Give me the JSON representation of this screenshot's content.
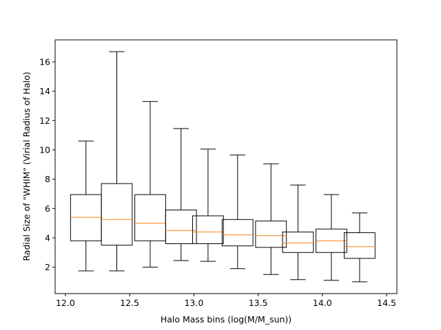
{
  "chart_data": {
    "type": "boxplot",
    "title": "",
    "xlabel": "Halo Mass bins (log(M/M_sun))",
    "ylabel": "Radial Size of \"WHIM\" (Virial Radius of Halo)",
    "xlim": [
      11.92,
      14.58
    ],
    "ylim": [
      0.2,
      17.5
    ],
    "xticks": [
      12.0,
      12.5,
      13.0,
      13.5,
      14.0,
      14.5
    ],
    "xtick_labels": [
      "12.0",
      "12.5",
      "13.0",
      "13.5",
      "14.0",
      "14.5"
    ],
    "yticks": [
      2,
      4,
      6,
      8,
      10,
      12,
      14,
      16
    ],
    "ytick_labels": [
      "2",
      "4",
      "6",
      "8",
      "10",
      "12",
      "14",
      "16"
    ],
    "grid": false,
    "colors": {
      "box": "#000000",
      "median": "#ff7f0e"
    },
    "boxes": [
      {
        "position": 12.16,
        "width": 0.24,
        "whislo": 1.75,
        "q1": 3.8,
        "median": 5.4,
        "q3": 6.95,
        "whishi": 10.6
      },
      {
        "position": 12.4,
        "width": 0.24,
        "whislo": 1.75,
        "q1": 3.5,
        "median": 5.25,
        "q3": 7.7,
        "whishi": 16.7
      },
      {
        "position": 12.66,
        "width": 0.24,
        "whislo": 2.0,
        "q1": 3.8,
        "median": 5.0,
        "q3": 6.95,
        "whishi": 13.3
      },
      {
        "position": 12.9,
        "width": 0.24,
        "whislo": 2.45,
        "q1": 3.6,
        "median": 4.5,
        "q3": 5.9,
        "whishi": 11.45
      },
      {
        "position": 13.11,
        "width": 0.24,
        "whislo": 2.4,
        "q1": 3.6,
        "median": 4.4,
        "q3": 5.5,
        "whishi": 10.05
      },
      {
        "position": 13.34,
        "width": 0.24,
        "whislo": 1.9,
        "q1": 3.45,
        "median": 4.2,
        "q3": 5.25,
        "whishi": 9.65
      },
      {
        "position": 13.6,
        "width": 0.24,
        "whislo": 1.5,
        "q1": 3.35,
        "median": 4.15,
        "q3": 5.15,
        "whishi": 9.05
      },
      {
        "position": 13.81,
        "width": 0.24,
        "whislo": 1.15,
        "q1": 3.0,
        "median": 3.65,
        "q3": 4.4,
        "whishi": 7.6
      },
      {
        "position": 14.07,
        "width": 0.24,
        "whislo": 1.1,
        "q1": 3.0,
        "median": 3.8,
        "q3": 4.6,
        "whishi": 6.95
      },
      {
        "position": 14.29,
        "width": 0.24,
        "whislo": 1.0,
        "q1": 2.6,
        "median": 3.4,
        "q3": 4.35,
        "whishi": 5.7
      }
    ]
  }
}
